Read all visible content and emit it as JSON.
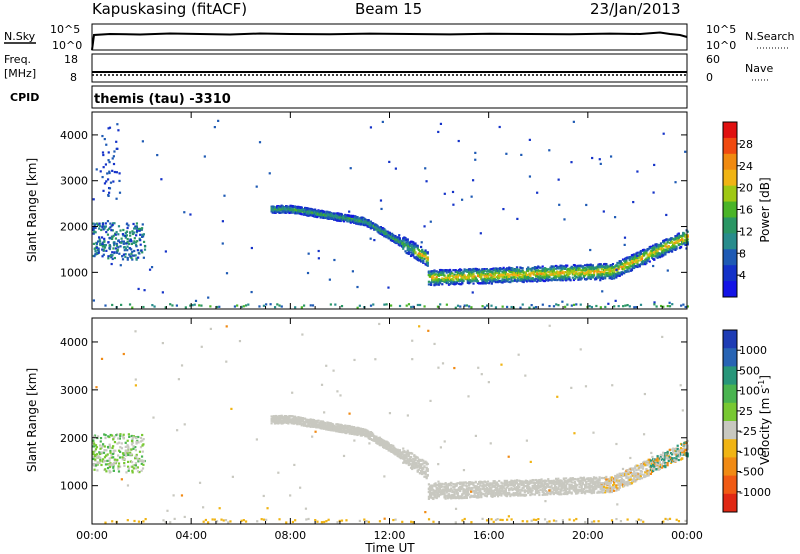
{
  "header": {
    "station": "Kapuskasing (fitACF)",
    "beam": "Beam 15",
    "date": "23/Jan/2013"
  },
  "top_panels": {
    "nsky": {
      "left_label": "N.Sky",
      "right_label": "N.Search",
      "left_ticks": [
        "10^5",
        "10^0"
      ],
      "right_ticks": [
        "10^5",
        "10^0"
      ]
    },
    "freq": {
      "left_label_1": "Freq.",
      "left_label_2": "[MHz]",
      "right_label": "Nave",
      "left_ticks": [
        "18",
        "8"
      ],
      "right_ticks": [
        "60",
        "0"
      ]
    },
    "cpid": {
      "label": "CPID",
      "value": "themis (tau) -3310"
    }
  },
  "chart_data": [
    {
      "type": "heatmap",
      "name": "power",
      "ylabel": "Slant Range [km]",
      "ylim": [
        200,
        4500
      ],
      "yticks": [
        1000,
        2000,
        3000,
        4000
      ],
      "xlim": [
        0,
        24
      ],
      "xticks": [
        "00:00",
        "04:00",
        "08:00",
        "12:00",
        "16:00",
        "20:00",
        "00:00"
      ],
      "colorbar": {
        "label": "Power [dB]",
        "ticks": [
          "28",
          "24",
          "20",
          "16",
          "12",
          "8",
          "4"
        ],
        "colors": [
          "#e01010",
          "#f04a10",
          "#f08a10",
          "#f0b414",
          "#9fc814",
          "#4ab428",
          "#2a9664",
          "#288c8c",
          "#1e5ab4",
          "#1432c8",
          "#1414e6"
        ]
      }
    },
    {
      "type": "heatmap",
      "name": "velocity",
      "ylabel": "Slant Range [km]",
      "xlabel": "Time UT",
      "ylim": [
        200,
        4500
      ],
      "yticks": [
        1000,
        2000,
        3000,
        4000
      ],
      "xlim": [
        0,
        24
      ],
      "xticks": [
        "00:00",
        "04:00",
        "08:00",
        "12:00",
        "16:00",
        "20:00",
        "00:00"
      ],
      "colorbar": {
        "label": "Velocity [m s^-1]",
        "ticks": [
          "1000",
          "500",
          "100",
          "25",
          "-25",
          "-100",
          "-500",
          "-1000"
        ],
        "colors": [
          "#1e3cb4",
          "#2864b4",
          "#28967a",
          "#4ab450",
          "#78c832",
          "#c8c8c0",
          "#f0b414",
          "#f08a14",
          "#f05a14",
          "#e02814"
        ]
      }
    }
  ]
}
